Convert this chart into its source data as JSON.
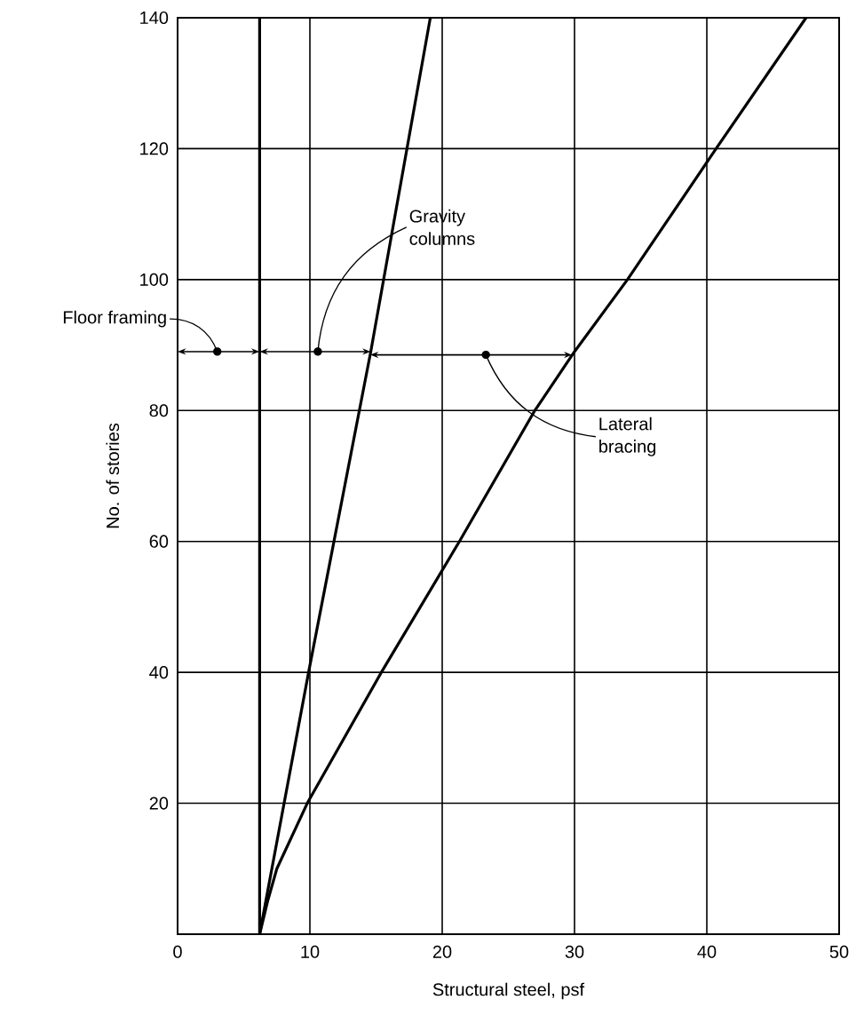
{
  "chart_data": {
    "type": "line",
    "xlabel": "Structural steel, psf",
    "ylabel": "No. of stories",
    "xlim": [
      0,
      50
    ],
    "ylim": [
      0,
      140
    ],
    "xticks": [
      0,
      10,
      20,
      30,
      40,
      50
    ],
    "yticks": [
      20,
      40,
      60,
      80,
      100,
      120,
      140
    ],
    "grid": true,
    "marker": "none",
    "line_style": "solid",
    "series": [
      {
        "color": "#000000",
        "x": [
          6.2,
          6.2
        ],
        "values": [
          0,
          140
        ]
      },
      {
        "color": "#000000",
        "x": [
          6.2,
          9.9,
          14.6,
          19.1
        ],
        "values": [
          0,
          40,
          89,
          140
        ]
      },
      {
        "color": "#000000",
        "x": [
          6.2,
          6.8,
          7.5,
          9.8,
          15.4,
          21.3,
          27.0,
          30.0,
          34.0,
          40.7,
          47.5
        ],
        "values": [
          0,
          5,
          10,
          20,
          40,
          60,
          80,
          89,
          100,
          120,
          140
        ]
      }
    ],
    "annotations": [
      {
        "text": "Floor framing",
        "x": 3.0,
        "y": 89
      },
      {
        "text": "Gravity columns",
        "x": 10.6,
        "y": 89
      },
      {
        "text": "Lateral bracing",
        "x": 23.3,
        "y": 88.5
      }
    ]
  }
}
